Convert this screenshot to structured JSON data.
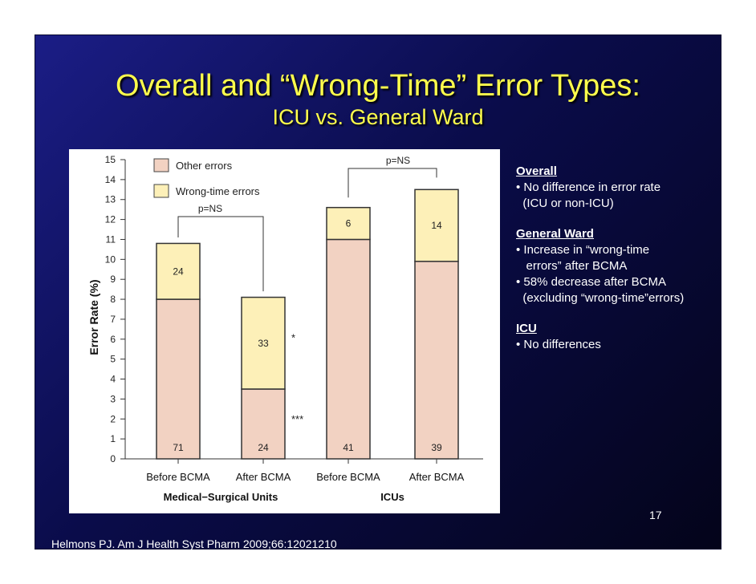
{
  "slide": {
    "title": "Overall and “Wrong-Time” Error Types:",
    "subtitle": "ICU vs. General Ward",
    "page_number": "17",
    "citation": "Helmons PJ. Am J Health Syst Pharm 2009;66:12021210",
    "notes": [
      {
        "heading": "Overall",
        "lines": [
          "• No difference in error rate",
          "  (ICU or non-ICU)"
        ]
      },
      {
        "heading": "General Ward",
        "lines": [
          "• Increase in “wrong-time",
          "   errors” after BCMA",
          "• 58% decrease after BCMA",
          "  (excluding “wrong-time”errors)"
        ]
      },
      {
        "heading": "ICU",
        "lines": [
          "• No differences"
        ]
      }
    ],
    "colors": {
      "background": "#111460",
      "title": "#ffff4c",
      "other_errors": "#f2d2c2",
      "wrong_time_errors": "#fdf0b8"
    }
  },
  "chart_data": {
    "type": "bar",
    "stacked": true,
    "ylabel": "Error Rate (%)",
    "ylim": [
      0,
      15
    ],
    "yticks": [
      0,
      1,
      2,
      3,
      4,
      5,
      6,
      7,
      8,
      9,
      10,
      11,
      12,
      13,
      14,
      15
    ],
    "categories": [
      "Before BCMA",
      "After BCMA",
      "Before BCMA",
      "After BCMA"
    ],
    "groups": [
      {
        "label": "Medical−Surgical Units",
        "categories": [
          0,
          1
        ]
      },
      {
        "label": "ICUs",
        "categories": [
          2,
          3
        ]
      }
    ],
    "series": [
      {
        "name": "Other errors",
        "values": [
          8.0,
          3.5,
          11.0,
          9.9
        ],
        "data_labels": [
          "71",
          "24",
          "41",
          "39"
        ],
        "color": "#f2d2c2"
      },
      {
        "name": "Wrong-time errors",
        "values": [
          2.8,
          4.6,
          1.6,
          3.6
        ],
        "data_labels": [
          "24",
          "33",
          "6",
          "14"
        ],
        "color": "#fdf0b8"
      }
    ],
    "annotations": [
      {
        "text": "p=NS",
        "between": [
          0,
          1
        ]
      },
      {
        "text": "p=NS",
        "between": [
          2,
          3
        ]
      },
      {
        "text": "*",
        "category": 1,
        "series": 1
      },
      {
        "text": "***",
        "category": 1,
        "series": 0
      }
    ],
    "legend": "top-left",
    "grid": false
  }
}
